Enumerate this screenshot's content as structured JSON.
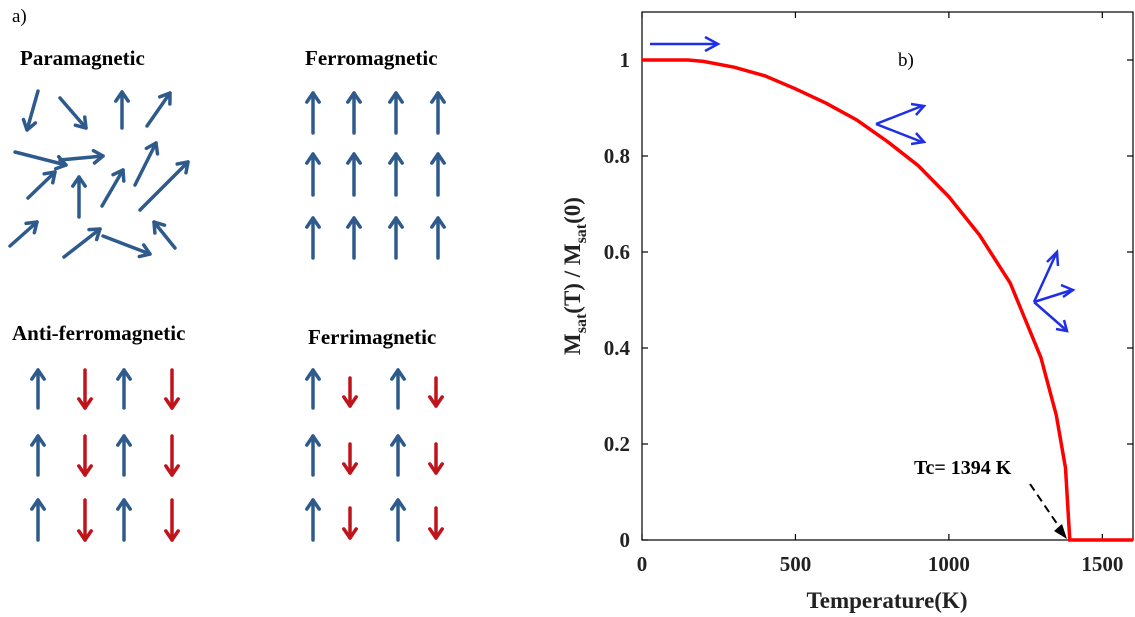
{
  "panel_a": {
    "label": "a)",
    "headings": {
      "paramagnetic": "Paramagnetic",
      "ferromagnetic": "Ferromagnetic",
      "antiferromagnetic": "Anti-ferromagnetic",
      "ferrimagnetic": "Ferrimagnetic"
    }
  },
  "panel_b": {
    "label": "b)",
    "annotation": "Tc= 1394 K"
  },
  "colors": {
    "spin_up": "#2f5b8c",
    "spin_down": "#c0141c",
    "curve": "#ff0000",
    "spin_icon": "#1f2fe6"
  },
  "chart_data": {
    "type": "line",
    "x_text": "Temperature(K)",
    "y_text_parts": [
      "M",
      "sat",
      "(T) / M",
      "sat",
      "(0)"
    ],
    "xlim": [
      0,
      1600
    ],
    "ylim": [
      0,
      1.1
    ],
    "xticks": [
      0,
      500,
      1000,
      1500
    ],
    "xtick_labels": [
      "0",
      "500",
      "1000",
      "1500"
    ],
    "yticks": [
      0,
      0.2,
      0.4,
      0.6,
      0.8,
      1
    ],
    "ytick_labels": [
      "0",
      "0.2",
      "0.4",
      "0.6",
      "0.8",
      "1"
    ],
    "grid": false,
    "legend": "none",
    "series": [
      {
        "x": [
          0,
          150,
          200,
          300,
          400,
          500,
          600,
          700,
          800,
          900,
          1000,
          1100,
          1200,
          1300,
          1350,
          1380,
          1394,
          1450,
          1600
        ],
        "y": [
          1.0,
          1.0,
          0.997,
          0.985,
          0.967,
          0.94,
          0.91,
          0.875,
          0.83,
          0.78,
          0.715,
          0.635,
          0.535,
          0.38,
          0.26,
          0.15,
          0.0,
          0.0,
          0.0
        ]
      }
    ],
    "annotations": [
      {
        "text_key": "panel_b.annotation",
        "x": 1394,
        "y": 0
      }
    ]
  }
}
